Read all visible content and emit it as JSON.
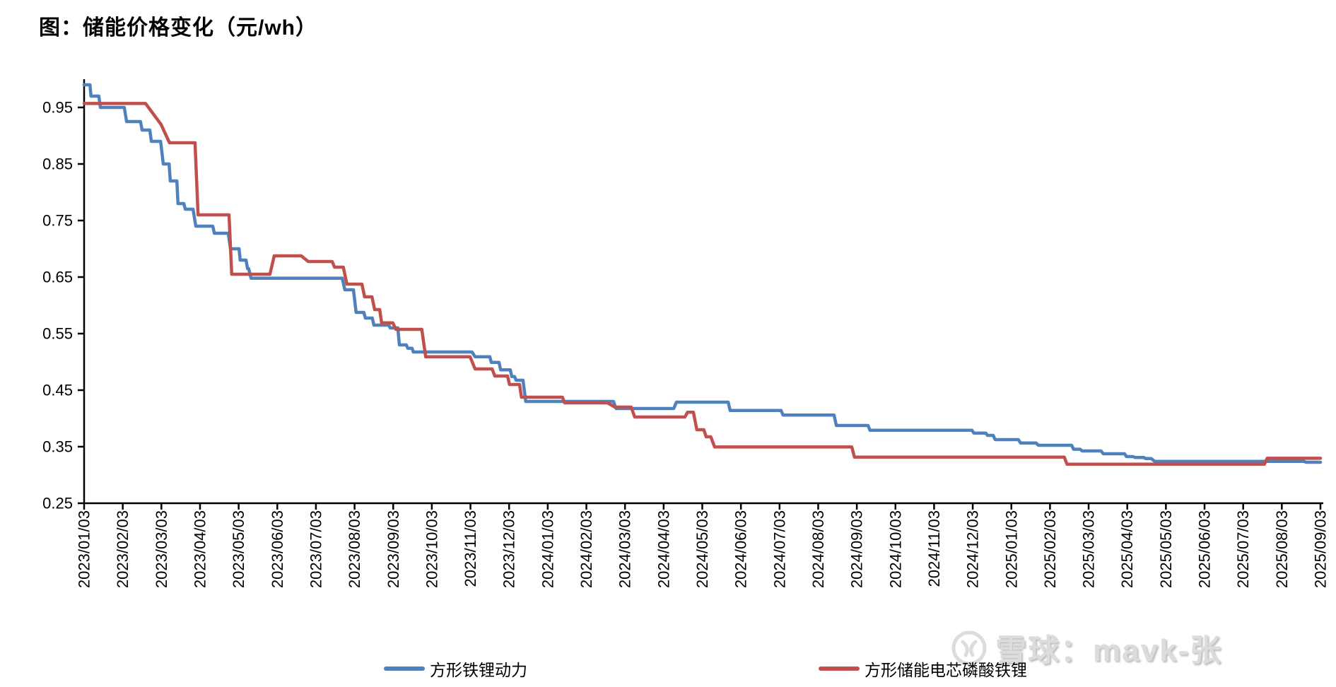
{
  "title": "图：储能价格变化（元/wh）",
  "watermark": {
    "text": "雪球：mavk-张"
  },
  "legend": {
    "items": [
      {
        "label": "方形铁锂动力",
        "color": "#4F81BD"
      },
      {
        "label": "方形储能电芯磷酸铁锂",
        "color": "#C0504D"
      }
    ]
  },
  "chart_data": {
    "type": "line",
    "title": "图：储能价格变化（元/wh）",
    "xlabel": "",
    "ylabel": "",
    "ylim": [
      0.25,
      1.0
    ],
    "grid": false,
    "legend_position": "bottom",
    "x_axis_note": "x encoded as months since 2023/01/03 (0 - 32), weekly quotes",
    "y_tick_values": [
      0.25,
      0.35,
      0.45,
      0.55,
      0.65,
      0.75,
      0.85,
      0.95
    ],
    "y_tick_labels": [
      "0.25",
      "0.35",
      "0.45",
      "0.55",
      "0.65",
      "0.75",
      "0.85",
      "0.95"
    ],
    "x_tick_labels": [
      "2023/01/03",
      "2023/02/03",
      "2023/03/03",
      "2023/04/03",
      "2023/05/03",
      "2023/06/03",
      "2023/07/03",
      "2023/08/03",
      "2023/09/03",
      "2023/10/03",
      "2023/11/03",
      "2023/12/03",
      "2024/01/03",
      "2024/02/03",
      "2024/03/03",
      "2024/04/03",
      "2024/05/03",
      "2024/06/03",
      "2024/07/03",
      "2024/08/03",
      "2024/09/03",
      "2024/10/03",
      "2024/11/03",
      "2024/12/03",
      "2025/01/03",
      "2025/02/03",
      "2025/03/03",
      "2025/04/03",
      "2025/05/03",
      "2025/06/03",
      "2025/07/03",
      "2025/08/03",
      "2025/09/03"
    ],
    "series": [
      {
        "name": "方形铁锂动力",
        "color": "#4F81BD",
        "points": [
          [
            0,
            0.99
          ],
          [
            0.15,
            0.99
          ],
          [
            0.18,
            0.97
          ],
          [
            0.38,
            0.97
          ],
          [
            0.42,
            0.95
          ],
          [
            1.04,
            0.95
          ],
          [
            1.1,
            0.925
          ],
          [
            1.46,
            0.925
          ],
          [
            1.5,
            0.91
          ],
          [
            1.7,
            0.91
          ],
          [
            1.74,
            0.89
          ],
          [
            1.98,
            0.89
          ],
          [
            2.05,
            0.85
          ],
          [
            2.2,
            0.85
          ],
          [
            2.23,
            0.82
          ],
          [
            2.4,
            0.82
          ],
          [
            2.43,
            0.78
          ],
          [
            2.58,
            0.78
          ],
          [
            2.62,
            0.77
          ],
          [
            2.82,
            0.77
          ],
          [
            2.89,
            0.74
          ],
          [
            3.33,
            0.74
          ],
          [
            3.37,
            0.7275
          ],
          [
            3.73,
            0.7275
          ],
          [
            3.79,
            0.7
          ],
          [
            4.01,
            0.7
          ],
          [
            4.04,
            0.68
          ],
          [
            4.19,
            0.68
          ],
          [
            4.23,
            0.665
          ],
          [
            4.26,
            0.665
          ],
          [
            4.32,
            0.648
          ],
          [
            6.68,
            0.648
          ],
          [
            6.75,
            0.6275
          ],
          [
            6.97,
            0.6275
          ],
          [
            7.04,
            0.5875
          ],
          [
            7.24,
            0.5875
          ],
          [
            7.28,
            0.5775
          ],
          [
            7.46,
            0.5775
          ],
          [
            7.5,
            0.565
          ],
          [
            7.89,
            0.565
          ],
          [
            7.92,
            0.56
          ],
          [
            8.12,
            0.56
          ],
          [
            8.16,
            0.53
          ],
          [
            8.34,
            0.53
          ],
          [
            8.38,
            0.524
          ],
          [
            8.49,
            0.524
          ],
          [
            8.52,
            0.5175
          ],
          [
            10.04,
            0.5175
          ],
          [
            10.12,
            0.509
          ],
          [
            10.5,
            0.509
          ],
          [
            10.54,
            0.499
          ],
          [
            10.74,
            0.499
          ],
          [
            10.78,
            0.486
          ],
          [
            11.03,
            0.486
          ],
          [
            11.07,
            0.474
          ],
          [
            11.14,
            0.474
          ],
          [
            11.18,
            0.4675
          ],
          [
            11.36,
            0.4675
          ],
          [
            11.43,
            0.43
          ],
          [
            13.7,
            0.43
          ],
          [
            13.77,
            0.4175
          ],
          [
            15.26,
            0.4175
          ],
          [
            15.33,
            0.4287
          ],
          [
            16.67,
            0.4287
          ],
          [
            16.72,
            0.414
          ],
          [
            18.04,
            0.414
          ],
          [
            18.09,
            0.406
          ],
          [
            19.41,
            0.406
          ],
          [
            19.47,
            0.3875
          ],
          [
            20.29,
            0.3875
          ],
          [
            20.34,
            0.379
          ],
          [
            22.98,
            0.379
          ],
          [
            23.03,
            0.374
          ],
          [
            23.34,
            0.374
          ],
          [
            23.38,
            0.37
          ],
          [
            23.53,
            0.37
          ],
          [
            23.58,
            0.3625
          ],
          [
            24.18,
            0.3625
          ],
          [
            24.24,
            0.3565
          ],
          [
            24.64,
            0.3565
          ],
          [
            24.7,
            0.3525
          ],
          [
            25.56,
            0.3525
          ],
          [
            25.61,
            0.3455
          ],
          [
            25.78,
            0.3455
          ],
          [
            25.83,
            0.3425
          ],
          [
            26.32,
            0.3425
          ],
          [
            26.38,
            0.3375
          ],
          [
            26.93,
            0.3375
          ],
          [
            26.98,
            0.3325
          ],
          [
            27.15,
            0.3325
          ],
          [
            27.2,
            0.331
          ],
          [
            27.42,
            0.331
          ],
          [
            27.48,
            0.329
          ],
          [
            27.62,
            0.329
          ],
          [
            27.71,
            0.324
          ],
          [
            31.57,
            0.324
          ],
          [
            31.63,
            0.3225
          ],
          [
            32,
            0.3225
          ]
        ]
      },
      {
        "name": "方形储能电芯磷酸铁锂",
        "color": "#C0504D",
        "points": [
          [
            0,
            0.957
          ],
          [
            1.59,
            0.957
          ],
          [
            1.99,
            0.92
          ],
          [
            2.21,
            0.8875
          ],
          [
            2.87,
            0.8875
          ],
          [
            2.95,
            0.76
          ],
          [
            3.75,
            0.76
          ],
          [
            3.82,
            0.655
          ],
          [
            4.81,
            0.655
          ],
          [
            4.92,
            0.6875
          ],
          [
            5.62,
            0.6875
          ],
          [
            5.8,
            0.6775
          ],
          [
            6.42,
            0.6775
          ],
          [
            6.48,
            0.6675
          ],
          [
            6.71,
            0.6675
          ],
          [
            6.8,
            0.6375
          ],
          [
            7.19,
            0.6375
          ],
          [
            7.26,
            0.615
          ],
          [
            7.45,
            0.615
          ],
          [
            7.52,
            0.5925
          ],
          [
            7.65,
            0.5925
          ],
          [
            7.7,
            0.569
          ],
          [
            7.99,
            0.569
          ],
          [
            8.07,
            0.5575
          ],
          [
            8.74,
            0.5575
          ],
          [
            8.84,
            0.509
          ],
          [
            9.99,
            0.509
          ],
          [
            10.12,
            0.4875
          ],
          [
            10.56,
            0.4875
          ],
          [
            10.63,
            0.475
          ],
          [
            10.96,
            0.475
          ],
          [
            11.01,
            0.46
          ],
          [
            11.27,
            0.46
          ],
          [
            11.32,
            0.4375
          ],
          [
            12.38,
            0.4375
          ],
          [
            12.44,
            0.4275
          ],
          [
            13.55,
            0.4275
          ],
          [
            13.74,
            0.42
          ],
          [
            14.16,
            0.42
          ],
          [
            14.25,
            0.4025
          ],
          [
            15.55,
            0.4025
          ],
          [
            15.62,
            0.411
          ],
          [
            15.77,
            0.411
          ],
          [
            15.86,
            0.38
          ],
          [
            16.04,
            0.38
          ],
          [
            16.1,
            0.3675
          ],
          [
            16.22,
            0.3675
          ],
          [
            16.32,
            0.3495
          ],
          [
            19.87,
            0.3495
          ],
          [
            19.94,
            0.3315
          ],
          [
            25.37,
            0.3315
          ],
          [
            25.44,
            0.319
          ],
          [
            30.55,
            0.319
          ],
          [
            30.62,
            0.3295
          ],
          [
            32,
            0.3295
          ]
        ]
      }
    ]
  }
}
